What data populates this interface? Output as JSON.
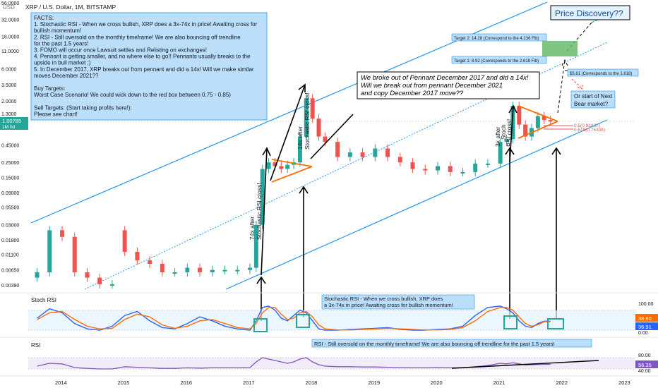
{
  "header": {
    "currency": "USD",
    "title": "XRP / U.S. Dollar, 1M, BITSTAMP"
  },
  "facts_box": {
    "lines": [
      "FACTS:",
      "1. Stochastic RSI - When we cross bullish, XRP does a 3x-74x in price! Awaiting cross for",
      "      bullish momentum!",
      "2. RSI - Still oversold on the monthly timeframe! We are also bouncing off trendline",
      "      for the past 1.5 years!",
      "3. FOMO will occur once Lawsuit settles and Relisting on exchanges!",
      "4. Pennant is getting smaller, and no where else to go!! Pennants usually breaks to the",
      "      upside in bull market ;)",
      "5. In December 2017, XRP breaks out from pennant and did a 14x! Will we make similar",
      "      moves December 2021??",
      "",
      "Buy Targets:",
      "Worst Case Scenario! We could wick down to the red box between 0.75 - 0.85)",
      "",
      "Sell Targets: (Start taking profits here!):",
      "Please see chart!"
    ]
  },
  "annotations": {
    "price_discovery": "Price Discovery??",
    "target2": "Target 2: 14.28 (Correspond to the 4.236 Fib)",
    "target1": "Target 1: 8.92 (Corresponds to the 2.618 Fib)",
    "target0": "$5.61 (Corresponds to the 1.618)",
    "bear_q": [
      "Or start of Next",
      "Bear market?"
    ],
    "pennant_note": [
      "We broke out of Pennant December 2017 and did a 14x!",
      "Will we break out from pennant December 2021",
      "and copy December 2017 move??"
    ],
    "label_74x": [
      "74x after",
      "Stochastic RSI cross!"
    ],
    "label_14x": [
      "14x after",
      "Stochastic RSI cross!"
    ],
    "label_3x": [
      "3x after",
      "Stoch",
      "RSI cross!"
    ],
    "fib_a": "0.5(0.91987)",
    "fib_b": "0.618(0.75338)",
    "stoch_note": [
      "Stochastic RSI - When we cross bullish, XRP does",
      "a 3x-74x in price! Awaiting cross for bullish momentum!"
    ],
    "rsi_note": "RSI - Still oversold on the monthly timeframe! We are also bouncing off trendline for the past 1.5 years!"
  },
  "price_axis": {
    "ticks": [
      "56.0000",
      "32.0000",
      "18.0000",
      "11.0000",
      "6.0000",
      "3.5000",
      "2.0000",
      "1.3000",
      "0.45000",
      "0.25000",
      "0.15000",
      "0.09000",
      "0.05500",
      "0.03000",
      "0.01800",
      "0.01100",
      "0.00650",
      "0.00390"
    ],
    "tick_values": [
      56,
      32,
      18,
      11,
      6,
      3.5,
      2,
      1.3,
      0.45,
      0.25,
      0.15,
      0.09,
      0.055,
      0.03,
      0.018,
      0.011,
      0.0065,
      0.0039
    ],
    "current_price": "1.00785",
    "current_sub": "1M 0d"
  },
  "stoch_panel": {
    "title": "Stoch RSI",
    "ticks": [
      "100.00",
      "0.00"
    ],
    "value_k": "38.60",
    "value_d": "36.91"
  },
  "rsi_panel": {
    "title": "RSI",
    "ticks": [
      "80.00",
      "40.00"
    ],
    "value": "56.35"
  },
  "time_axis": {
    "labels": [
      "2014",
      "2015",
      "2016",
      "2017",
      "2018",
      "2019",
      "2020",
      "2021",
      "2022",
      "2023"
    ],
    "years": [
      2014,
      2015,
      2016,
      2017,
      2018,
      2019,
      2020,
      2021,
      2022,
      2023
    ]
  },
  "colors": {
    "up": "#26a69a",
    "down": "#ef5350",
    "channel": "#2196f3",
    "orange": "#ff6d00",
    "stoch_k": "#2962ff",
    "stoch_d": "#ff6d00",
    "rsi": "#7e57c2",
    "note_bg": "#bbdefb",
    "target_green": "#66bb6a"
  },
  "chart_data": {
    "type": "candlestick",
    "scale": "log",
    "x_unit": "month (decimal year)",
    "candles_x": [
      2013.6,
      2013.8,
      2014.0,
      2014.2,
      2014.4,
      2014.6,
      2014.8,
      2015.0,
      2015.2,
      2015.4,
      2015.6,
      2015.8,
      2016.0,
      2016.2,
      2016.4,
      2016.6,
      2016.8,
      2017.0,
      2017.1,
      2017.2,
      2017.3,
      2017.4,
      2017.5,
      2017.6,
      2017.7,
      2017.8,
      2017.9,
      2018.0,
      2018.1,
      2018.2,
      2018.4,
      2018.6,
      2018.8,
      2019.0,
      2019.2,
      2019.4,
      2019.6,
      2019.8,
      2020.0,
      2020.2,
      2020.4,
      2020.6,
      2020.8,
      2021.0,
      2021.1,
      2021.2,
      2021.3,
      2021.4,
      2021.5,
      2021.6,
      2021.7,
      2021.8
    ],
    "candles_open": [
      0.005,
      0.006,
      0.025,
      0.02,
      0.006,
      0.005,
      0.004,
      0.025,
      0.012,
      0.009,
      0.008,
      0.006,
      0.006,
      0.007,
      0.006,
      0.0065,
      0.0065,
      0.0065,
      0.007,
      0.03,
      0.2,
      0.25,
      0.22,
      0.2,
      0.23,
      0.25,
      0.6,
      2.2,
      1.1,
      0.6,
      0.5,
      0.3,
      0.35,
      0.3,
      0.4,
      0.3,
      0.25,
      0.2,
      0.19,
      0.22,
      0.18,
      0.18,
      0.24,
      0.24,
      0.5,
      0.55,
      1.7,
      0.9,
      0.6,
      0.8,
      1.2,
      1.05
    ],
    "candles_close": [
      0.006,
      0.025,
      0.02,
      0.006,
      0.005,
      0.004,
      0.004,
      0.012,
      0.009,
      0.008,
      0.006,
      0.006,
      0.007,
      0.006,
      0.0065,
      0.0065,
      0.0065,
      0.007,
      0.03,
      0.2,
      0.25,
      0.22,
      0.2,
      0.23,
      0.25,
      0.6,
      2.2,
      1.1,
      0.6,
      0.5,
      0.3,
      0.35,
      0.3,
      0.4,
      0.3,
      0.25,
      0.2,
      0.19,
      0.22,
      0.18,
      0.18,
      0.24,
      0.24,
      0.5,
      0.55,
      1.7,
      0.9,
      0.6,
      0.8,
      1.2,
      1.05,
      1.0
    ],
    "stoch_k": [
      50,
      85,
      70,
      30,
      10,
      5,
      20,
      60,
      75,
      40,
      15,
      10,
      30,
      55,
      40,
      20,
      10,
      5,
      40,
      90,
      95,
      80,
      50,
      40,
      60,
      80,
      70,
      40,
      10,
      5,
      5,
      8,
      10,
      12,
      15,
      8,
      5,
      5,
      8,
      10,
      20,
      60,
      90,
      95,
      85,
      70,
      40,
      20,
      15,
      30,
      38.6,
      38.6
    ],
    "stoch_d": [
      45,
      70,
      75,
      45,
      20,
      10,
      12,
      45,
      65,
      55,
      25,
      12,
      20,
      40,
      45,
      30,
      15,
      10,
      30,
      70,
      90,
      90,
      65,
      45,
      50,
      70,
      75,
      55,
      25,
      10,
      6,
      6,
      8,
      10,
      12,
      10,
      8,
      6,
      6,
      8,
      15,
      40,
      75,
      90,
      90,
      80,
      55,
      30,
      20,
      25,
      36.9,
      36.9
    ],
    "rsi": [
      50,
      60,
      58,
      45,
      42,
      40,
      40,
      48,
      46,
      44,
      42,
      42,
      44,
      43,
      44,
      44,
      44,
      45,
      65,
      80,
      75,
      70,
      65,
      60,
      65,
      75,
      80,
      65,
      55,
      50,
      48,
      48,
      47,
      47,
      46,
      45,
      44,
      44,
      45,
      44,
      44,
      48,
      52,
      60,
      58,
      62,
      58,
      54,
      55,
      56,
      56.35,
      56.35
    ]
  }
}
